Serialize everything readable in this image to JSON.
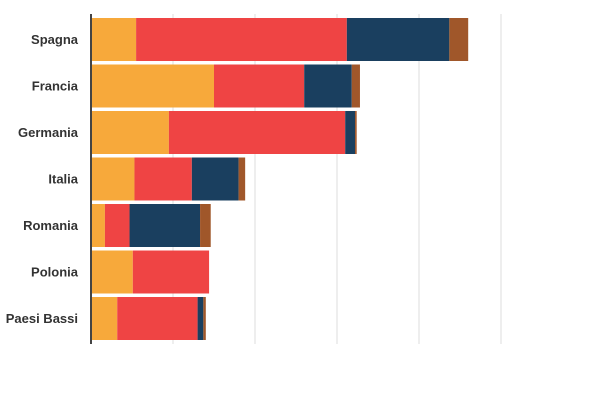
{
  "chart_data": {
    "type": "bar",
    "orientation": "horizontal",
    "stacked": true,
    "title": "",
    "xlabel": "",
    "ylabel": "",
    "categories": [
      "Spagna",
      "Francia",
      "Germania",
      "Italia",
      "Romania",
      "Polonia",
      "Paesi Bassi"
    ],
    "series": [
      {
        "color": "#f7a93b",
        "values": [
          0.55,
          1.5,
          0.95,
          0.53,
          0.17,
          0.51,
          0.32
        ]
      },
      {
        "color": "#ef4444",
        "values": [
          2.57,
          1.1,
          2.15,
          0.7,
          0.3,
          0.93,
          0.98
        ]
      },
      {
        "color": "#1a3f5f",
        "values": [
          1.25,
          0.58,
          0.12,
          0.57,
          0.86,
          0.0,
          0.07
        ]
      },
      {
        "color": "#a0572a",
        "values": [
          0.23,
          0.1,
          0.02,
          0.08,
          0.13,
          0.0,
          0.03
        ]
      }
    ],
    "xlim": [
      0,
      5
    ],
    "grid": true,
    "legend": "none"
  }
}
